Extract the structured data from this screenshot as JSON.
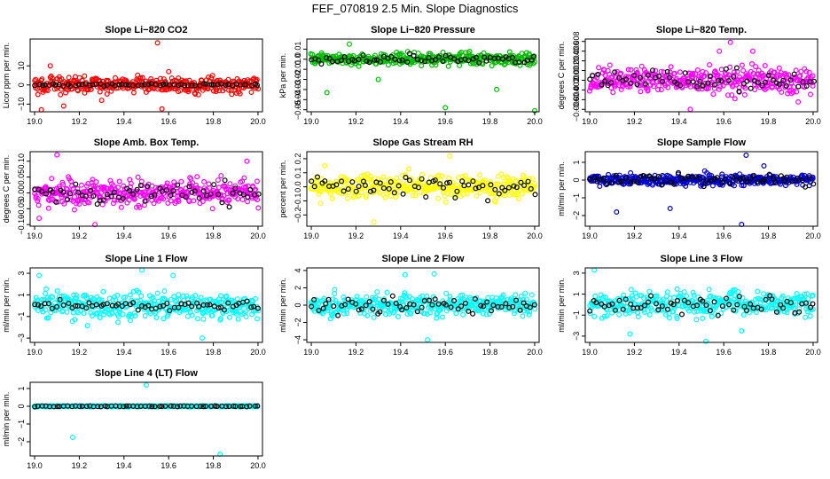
{
  "figure": {
    "title": "FEF_070819  2.5 Min. Slope Diagnostics"
  },
  "chart_data": [
    {
      "type": "scatter",
      "title": "Slope Li−820 CO2",
      "ylabel": "Licor ppm per min.",
      "color": "#ff0000",
      "xlim": [
        18.98,
        20.02
      ],
      "ylim": [
        -14,
        24
      ],
      "xticks": [
        19.0,
        19.2,
        19.4,
        19.6,
        19.8,
        20.0
      ],
      "xtick_labels": [
        "19.0",
        "19.2",
        "19.4",
        "19.6",
        "19.8",
        "20.0"
      ],
      "yticks": [
        -10,
        0,
        10
      ],
      "ytick_labels": [
        "−10",
        "0",
        "10"
      ],
      "spread": 3.5,
      "black_spread": 0.6,
      "outliers": [
        [
          19.03,
          -13
        ],
        [
          19.07,
          10
        ],
        [
          19.13,
          -11
        ],
        [
          19.55,
          22
        ],
        [
          19.57,
          -12.5
        ],
        [
          19.6,
          7
        ],
        [
          19.3,
          -8
        ]
      ]
    },
    {
      "type": "scatter",
      "title": "Slope Li−820 Pressure",
      "ylabel": "kPa per min.",
      "color": "#00bb00",
      "xlim": [
        18.98,
        20.02
      ],
      "ylim": [
        -0.052,
        0.02
      ],
      "xticks": [
        19.0,
        19.2,
        19.4,
        19.6,
        19.8,
        20.0
      ],
      "xtick_labels": [
        "19.0",
        "19.2",
        "19.4",
        "19.6",
        "19.8",
        "20.0"
      ],
      "yticks": [
        -0.05,
        -0.04,
        -0.03,
        -0.02,
        -0.01,
        0.0,
        0.01
      ],
      "ytick_labels": [
        "−0.05",
        "−0.04",
        "−0.03",
        "−0.02",
        "−0.01",
        "0.0",
        "0.01"
      ],
      "spread": 0.005,
      "black_spread": 0.004,
      "outliers": [
        [
          19.17,
          0.015
        ],
        [
          19.07,
          -0.033
        ],
        [
          19.6,
          -0.048
        ],
        [
          19.3,
          -0.02
        ],
        [
          19.83,
          -0.03
        ],
        [
          20.0,
          -0.051
        ]
      ]
    },
    {
      "type": "scatter",
      "title": "Slope Li−820 Temp.",
      "ylabel": "degrees C per min.",
      "color": "#ff00ff",
      "xlim": [
        18.98,
        20.02
      ],
      "ylim": [
        -0.0065,
        0.0085
      ],
      "xticks": [
        19.0,
        19.2,
        19.4,
        19.6,
        19.8,
        20.0
      ],
      "xtick_labels": [
        "19.0",
        "19.2",
        "19.4",
        "19.6",
        "19.8",
        "20.0"
      ],
      "yticks": [
        -0.006,
        -0.004,
        -0.002,
        0.0,
        0.002,
        0.004,
        0.006,
        0.008
      ],
      "ytick_labels": [
        "−0.006",
        "−0.004",
        "−0.002",
        "0.000",
        "0.002",
        "0.004",
        "0.006",
        "0.008"
      ],
      "spread": 0.0022,
      "black_spread": 0.0015,
      "outliers": [
        [
          19.63,
          0.0078
        ],
        [
          19.45,
          -0.006
        ],
        [
          19.58,
          0.006
        ],
        [
          19.73,
          0.006
        ]
      ]
    },
    {
      "type": "scatter",
      "title": "Slope Amb. Box Temp.",
      "ylabel": "degrees C per min.",
      "color": "#ff00ff",
      "xlim": [
        18.98,
        20.02
      ],
      "ylim": [
        -0.105,
        0.13
      ],
      "xticks": [
        19.0,
        19.2,
        19.4,
        19.6,
        19.8,
        20.0
      ],
      "xtick_labels": [
        "19.0",
        "19.2",
        "19.4",
        "19.6",
        "19.8",
        "20.0"
      ],
      "yticks": [
        -0.1,
        -0.05,
        0.0,
        0.05,
        0.1
      ],
      "ytick_labels": [
        "−0.10",
        "−0.05",
        "0.00",
        "0.05",
        "0.10"
      ],
      "spread": 0.035,
      "black_spread": 0.03,
      "outliers": [
        [
          19.1,
          0.12
        ],
        [
          19.27,
          -0.1
        ],
        [
          19.02,
          -0.08
        ],
        [
          19.95,
          0.1
        ]
      ]
    },
    {
      "type": "scatter",
      "title": "Slope Gas Stream RH",
      "ylabel": "percent per min.",
      "color": "#ffff00",
      "xlim": [
        18.98,
        20.02
      ],
      "ylim": [
        -0.28,
        0.25
      ],
      "xticks": [
        19.0,
        19.2,
        19.4,
        19.6,
        19.8,
        20.0
      ],
      "xtick_labels": [
        "19.0",
        "19.2",
        "19.4",
        "19.6",
        "19.8",
        "20.0"
      ],
      "yticks": [
        -0.2,
        -0.1,
        0.0,
        0.1,
        0.2
      ],
      "ytick_labels": [
        "−0.2",
        "−0.1",
        "0.0",
        "0.1",
        "0.2"
      ],
      "spread": 0.07,
      "black_spread": 0.06,
      "outliers": [
        [
          19.62,
          0.22
        ],
        [
          19.28,
          -0.25
        ],
        [
          19.06,
          0.15
        ]
      ]
    },
    {
      "type": "scatter",
      "title": "Slope Sample Flow",
      "ylabel": "ml/min per min.",
      "color": "#0000cc",
      "xlim": [
        18.98,
        20.02
      ],
      "ylim": [
        -2.6,
        1.6
      ],
      "xticks": [
        19.0,
        19.2,
        19.4,
        19.6,
        19.8,
        20.0
      ],
      "xtick_labels": [
        "19.0",
        "19.2",
        "19.4",
        "19.6",
        "19.8",
        "20.0"
      ],
      "yticks": [
        -2,
        -1,
        0,
        1
      ],
      "ytick_labels": [
        "−2",
        "−1",
        "0",
        "1"
      ],
      "spread": 0.25,
      "black_spread": 0.25,
      "outliers": [
        [
          19.7,
          1.4
        ],
        [
          19.12,
          -1.8
        ],
        [
          19.68,
          -2.5
        ],
        [
          19.78,
          0.8
        ],
        [
          19.36,
          -1.6
        ]
      ]
    },
    {
      "type": "scatter",
      "title": "Slope Line 1 Flow",
      "ylabel": "ml/min per min.",
      "color": "#00ffff",
      "xlim": [
        18.98,
        20.02
      ],
      "ylim": [
        -3.4,
        3.5
      ],
      "xticks": [
        19.0,
        19.2,
        19.4,
        19.6,
        19.8,
        20.0
      ],
      "xtick_labels": [
        "19.0",
        "19.2",
        "19.4",
        "19.6",
        "19.8",
        "20.0"
      ],
      "yticks": [
        -3,
        -1,
        1,
        3
      ],
      "ytick_labels": [
        "−3",
        "−1",
        "1",
        "3"
      ],
      "spread": 1.0,
      "black_spread": 0.3,
      "outliers": [
        [
          19.02,
          2.8
        ],
        [
          19.48,
          3.3
        ],
        [
          19.75,
          -3.0
        ],
        [
          19.62,
          2.8
        ]
      ]
    },
    {
      "type": "scatter",
      "title": "Slope Line 2 Flow",
      "ylabel": "ml/min per min.",
      "color": "#00ffff",
      "xlim": [
        18.98,
        20.02
      ],
      "ylim": [
        -4.3,
        4.3
      ],
      "xticks": [
        19.0,
        19.2,
        19.4,
        19.6,
        19.8,
        20.0
      ],
      "xtick_labels": [
        "19.0",
        "19.2",
        "19.4",
        "19.6",
        "19.8",
        "20.0"
      ],
      "yticks": [
        -4,
        -2,
        0,
        2,
        4
      ],
      "ytick_labels": [
        "−4",
        "−2",
        "0",
        "2",
        "4"
      ],
      "spread": 1.0,
      "black_spread": 0.8,
      "outliers": [
        [
          19.52,
          -4.0
        ],
        [
          19.42,
          3.5
        ],
        [
          19.55,
          3.6
        ]
      ]
    },
    {
      "type": "scatter",
      "title": "Slope Line 3 Flow",
      "ylabel": "ml/min per min.",
      "color": "#00ffff",
      "xlim": [
        18.98,
        20.02
      ],
      "ylim": [
        -3.6,
        3.5
      ],
      "xticks": [
        19.0,
        19.2,
        19.4,
        19.6,
        19.8,
        20.0
      ],
      "xtick_labels": [
        "19.0",
        "19.2",
        "19.4",
        "19.6",
        "19.8",
        "20.0"
      ],
      "yticks": [
        -3,
        -1,
        1,
        3
      ],
      "ytick_labels": [
        "−3",
        "−1",
        "1",
        "3"
      ],
      "spread": 1.0,
      "black_spread": 0.8,
      "outliers": [
        [
          19.02,
          3.3
        ],
        [
          19.52,
          -3.5
        ],
        [
          19.18,
          -2.8
        ],
        [
          19.68,
          -2.5
        ]
      ]
    },
    {
      "type": "scatter",
      "title": "Slope Line 4 (LT) Flow",
      "ylabel": "ml/min per min.",
      "color": "#00ffff",
      "xlim": [
        18.98,
        20.02
      ],
      "ylim": [
        -2.8,
        1.35
      ],
      "xticks": [
        19.0,
        19.2,
        19.4,
        19.6,
        19.8,
        20.0
      ],
      "xtick_labels": [
        "19.0",
        "19.2",
        "19.4",
        "19.6",
        "19.8",
        "20.0"
      ],
      "yticks": [
        -2,
        -1,
        0,
        1
      ],
      "ytick_labels": [
        "−2",
        "−1",
        "0",
        "1"
      ],
      "spread": 0.03,
      "black_spread": 0.02,
      "outliers": [
        [
          19.17,
          -1.75
        ],
        [
          19.5,
          1.2
        ],
        [
          19.83,
          -2.7
        ]
      ]
    }
  ]
}
